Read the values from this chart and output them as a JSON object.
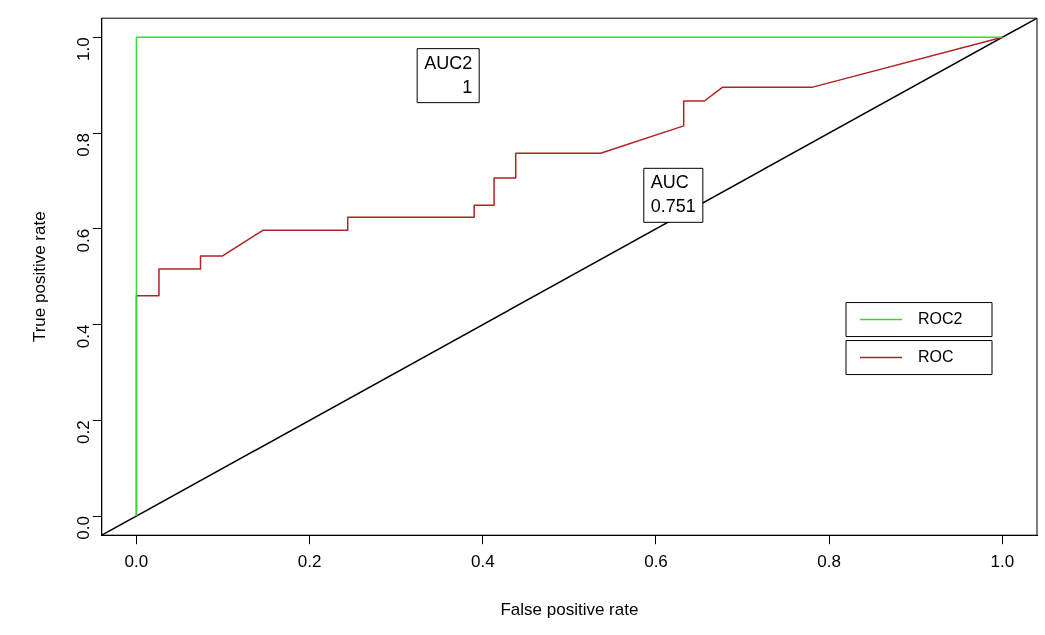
{
  "chart_data": {
    "type": "line",
    "xlabel": "False positive rate",
    "ylabel": "True positive rate",
    "xlim": [
      -0.04,
      1.04
    ],
    "ylim": [
      -0.04,
      1.04
    ],
    "xticks": [
      {
        "value": 0,
        "label": "0.0"
      },
      {
        "value": 0.2,
        "label": "0.2"
      },
      {
        "value": 0.4,
        "label": "0.4"
      },
      {
        "value": 0.6,
        "label": "0.6"
      },
      {
        "value": 0.8,
        "label": "0.8"
      },
      {
        "value": 1,
        "label": "1.0"
      }
    ],
    "yticks": [
      {
        "value": 0,
        "label": "0.0"
      },
      {
        "value": 0.2,
        "label": "0.2"
      },
      {
        "value": 0.4,
        "label": "0.4"
      },
      {
        "value": 0.6,
        "label": "0.6"
      },
      {
        "value": 0.8,
        "label": "0.8"
      },
      {
        "value": 1,
        "label": "1.0"
      }
    ],
    "series": [
      {
        "name": "ROC2",
        "color": "#3cd63c",
        "x": [
          0,
          0,
          1
        ],
        "values": [
          0,
          1,
          1
        ]
      },
      {
        "name": "ROC",
        "color": "#b22222",
        "x": [
          0,
          0,
          0.026,
          0.026,
          0.074,
          0.074,
          0.099,
          0.146,
          0.244,
          0.244,
          0.39,
          0.39,
          0.413,
          0.413,
          0.438,
          0.438,
          0.536,
          0.632,
          0.632,
          0.656,
          0.677,
          0.781,
          1
        ],
        "values": [
          0,
          0.46,
          0.46,
          0.516,
          0.516,
          0.543,
          0.543,
          0.597,
          0.597,
          0.624,
          0.624,
          0.649,
          0.649,
          0.706,
          0.706,
          0.758,
          0.758,
          0.815,
          0.867,
          0.867,
          0.896,
          0.896,
          1
        ]
      },
      {
        "color": "#000000",
        "x": [
          -0.04,
          1.04
        ],
        "values": [
          -0.04,
          1.04
        ]
      }
    ],
    "annotations": [
      "AUC2\n1",
      "AUC\n0.751"
    ],
    "grid": false,
    "legend": "right",
    "marker": "none",
    "line_style": "solid"
  }
}
